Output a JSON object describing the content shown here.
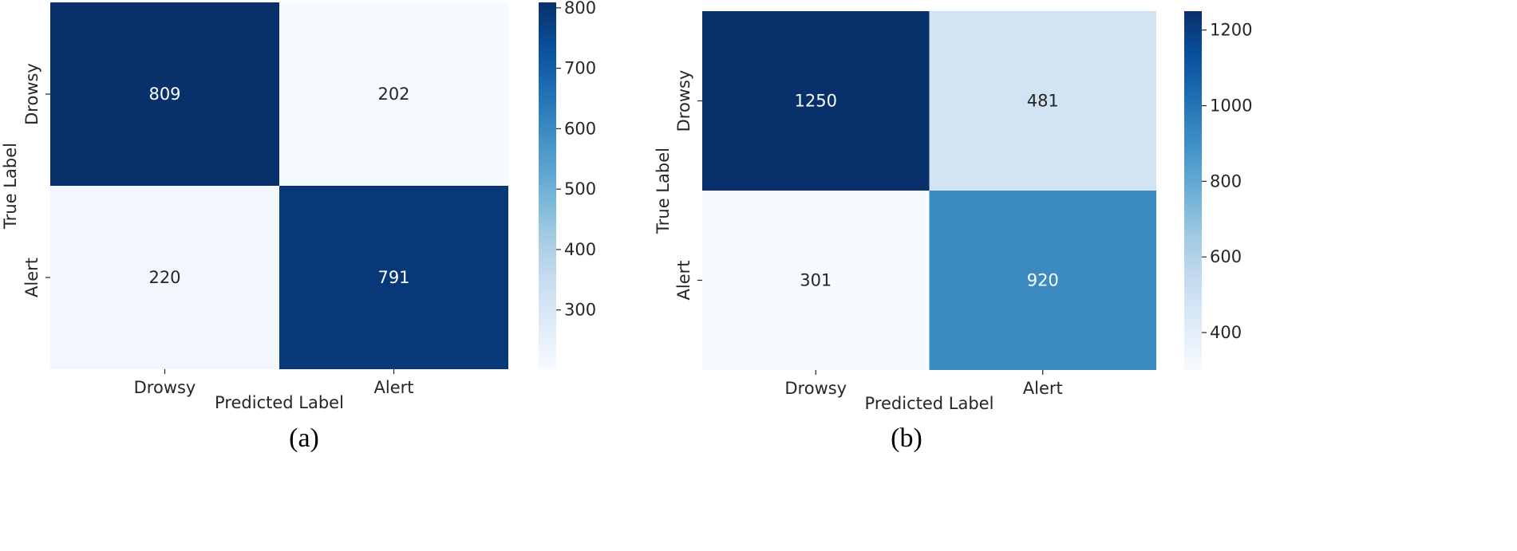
{
  "chart_data": [
    {
      "type": "heatmap",
      "panel_label": "(a)",
      "xlabel": "Predicted Label",
      "ylabel": "True Label",
      "x_categories": [
        "Drowsy",
        "Alert"
      ],
      "y_categories": [
        "Drowsy",
        "Alert"
      ],
      "values": [
        [
          809,
          202
        ],
        [
          220,
          791
        ]
      ],
      "colormap": "Blues",
      "color_range": [
        202,
        809
      ],
      "colorbar_ticks": [
        300,
        400,
        500,
        600,
        700,
        800
      ]
    },
    {
      "type": "heatmap",
      "panel_label": "(b)",
      "xlabel": "Predicted Label",
      "ylabel": "True Label",
      "x_categories": [
        "Drowsy",
        "Alert"
      ],
      "y_categories": [
        "Drowsy",
        "Alert"
      ],
      "values": [
        [
          1250,
          481
        ],
        [
          301,
          920
        ]
      ],
      "colormap": "Blues",
      "color_range": [
        301,
        1250
      ],
      "colorbar_ticks": [
        400,
        600,
        800,
        1000,
        1200
      ]
    }
  ],
  "colormap_stops": [
    "#f7fbff",
    "#deebf7",
    "#c6dbef",
    "#9ecae1",
    "#6baed6",
    "#4292c6",
    "#2171b5",
    "#08519c",
    "#08306b"
  ],
  "grid": false
}
